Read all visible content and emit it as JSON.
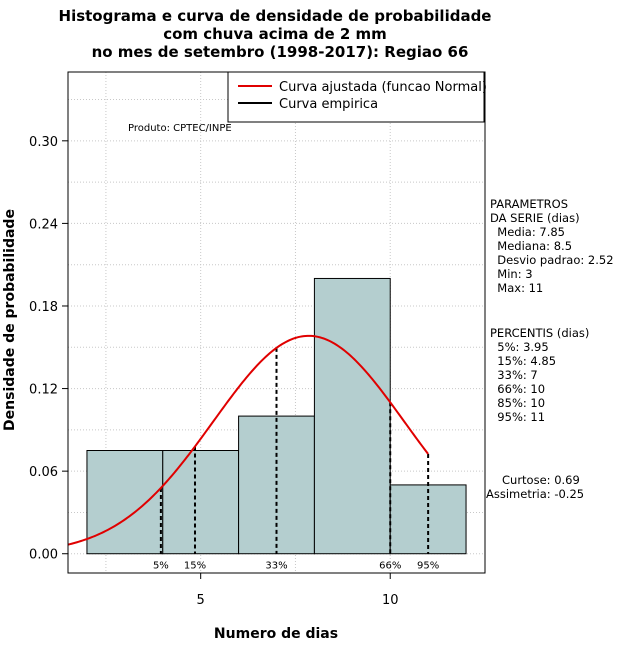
{
  "chart_data": {
    "type": "bar",
    "title_lines": [
      "Histograma e curva de densidade de probabilidade",
      "com chuva acima de 2 mm",
      "no mes de setembro (1998-2017): Regiao 66"
    ],
    "xlabel": "Numero de dias",
    "ylabel": "Densidade de probabilidade",
    "xlim": [
      1.5,
      12.5
    ],
    "ylim": [
      -0.014,
      0.35
    ],
    "x_ticks": [
      5,
      10
    ],
    "y_ticks": [
      0.0,
      0.06,
      0.12,
      0.18,
      0.24,
      0.3
    ],
    "y_tick_labels": [
      "0.00",
      "0.06",
      "0.12",
      "0.18",
      "0.24",
      "0.30"
    ],
    "grid": true,
    "bars": [
      {
        "x0": 2,
        "x1": 4,
        "density": 0.075
      },
      {
        "x0": 4,
        "x1": 6,
        "density": 0.075
      },
      {
        "x0": 6,
        "x1": 8,
        "density": 0.1
      },
      {
        "x0": 8,
        "x1": 10,
        "density": 0.2
      },
      {
        "x0": 10,
        "x1": 12,
        "density": 0.05
      }
    ],
    "bar_color": "#b4cecf",
    "normal_curve": {
      "mean": 7.85,
      "sd": 2.52,
      "x_from": 1.5,
      "x_to": 11,
      "color": "#e00000"
    },
    "percentile_lines": [
      {
        "label": "5%",
        "x": 3.95
      },
      {
        "label": "15%",
        "x": 4.85
      },
      {
        "label": "33%",
        "x": 7
      },
      {
        "label": "66%",
        "x": 10
      },
      {
        "label": "95%",
        "x": 11
      }
    ],
    "legend": {
      "placement": "top-right",
      "entries": [
        {
          "label": "Curva ajustada (funcao Normal)",
          "color": "#e00000"
        },
        {
          "label": "Curva empirica",
          "color": "#000000"
        }
      ]
    },
    "annotation": "Produto: CPTEC/INPE"
  },
  "stats_panel": {
    "params_lines": [
      "PARAMETROS",
      "DA SERIE (dias)",
      "  Media: 7.85",
      "  Mediana: 8.5",
      "  Desvio padrao: 2.52",
      "  Min: 3",
      "  Max: 11"
    ],
    "percentis_lines": [
      "PERCENTIS (dias)",
      "  5%: 3.95",
      "  15%: 4.85",
      "  33%: 7",
      "  66%: 10",
      "  85%: 10",
      "  95%: 11"
    ],
    "moments_lines": [
      "Curtose: 0.69",
      "Assimetria: -0.25"
    ]
  }
}
